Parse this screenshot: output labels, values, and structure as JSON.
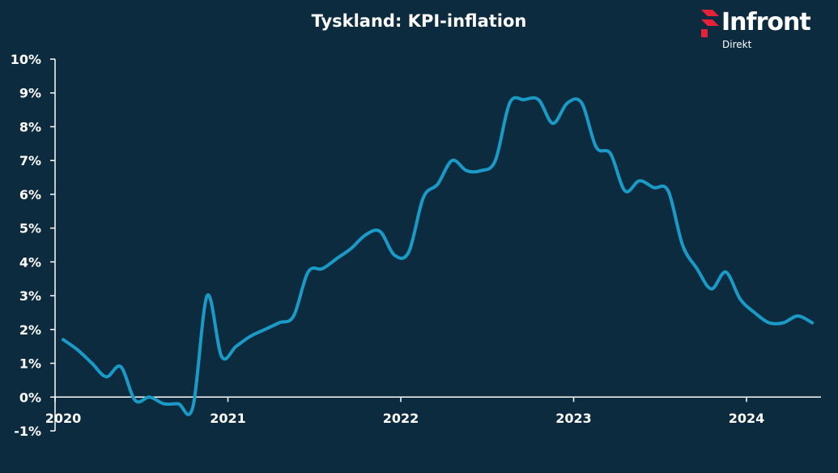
{
  "header": {
    "title": "Tyskland: KPI-inflation",
    "brand": "Infront",
    "brand_sub": "Direkt"
  },
  "colors": {
    "background": "#0d2b3f",
    "line": "#1a9bc7",
    "axis": "#ffffff",
    "brand_accent": "#e8213a"
  },
  "chart_data": {
    "type": "line",
    "title": "Tyskland: KPI-inflation",
    "xlabel": "",
    "ylabel": "",
    "ylim": [
      -1,
      10
    ],
    "y_ticks": [
      "-1%",
      "0%",
      "1%",
      "2%",
      "3%",
      "4%",
      "5%",
      "6%",
      "7%",
      "8%",
      "9%",
      "10%"
    ],
    "x_ticks": [
      "2020",
      "2021",
      "2022",
      "2023",
      "2024"
    ],
    "grid": false,
    "legend": "none",
    "series": [
      {
        "x": [
          "2020-01",
          "2020-02",
          "2020-03",
          "2020-04",
          "2020-05",
          "2020-06",
          "2020-07",
          "2020-08",
          "2020-09",
          "2020-10",
          "2020-11",
          "2020-12",
          "2021-01",
          "2021-02",
          "2021-03",
          "2021-04",
          "2021-05",
          "2021-06",
          "2021-07",
          "2021-08",
          "2021-09",
          "2021-10",
          "2021-11",
          "2021-12",
          "2022-01",
          "2022-02",
          "2022-03",
          "2022-04",
          "2022-05",
          "2022-06",
          "2022-07",
          "2022-08",
          "2022-09",
          "2022-10",
          "2022-11",
          "2022-12",
          "2023-01",
          "2023-02",
          "2023-03",
          "2023-04",
          "2023-05",
          "2023-06",
          "2023-07",
          "2023-08",
          "2023-09",
          "2023-10",
          "2023-11",
          "2023-12",
          "2024-01",
          "2024-02",
          "2024-03",
          "2024-04",
          "2024-05"
        ],
        "values": [
          1.7,
          1.4,
          1.0,
          0.6,
          0.9,
          -0.1,
          0.0,
          -0.2,
          -0.2,
          -0.3,
          3.0,
          1.2,
          1.5,
          1.8,
          2.0,
          2.2,
          2.4,
          3.7,
          3.8,
          4.1,
          4.4,
          4.8,
          4.9,
          4.2,
          4.3,
          5.9,
          6.3,
          7.0,
          6.7,
          6.7,
          7.0,
          8.7,
          8.8,
          8.8,
          8.1,
          8.7,
          8.7,
          7.4,
          7.2,
          6.1,
          6.4,
          6.2,
          6.1,
          4.5,
          3.8,
          3.2,
          3.7,
          2.9,
          2.5,
          2.2,
          2.2,
          2.4,
          2.2
        ]
      }
    ]
  }
}
